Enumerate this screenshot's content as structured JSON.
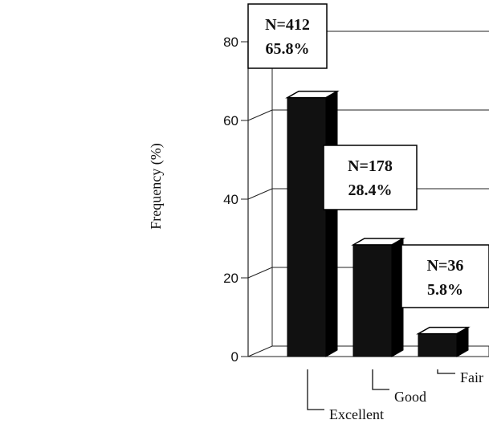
{
  "chart_data": {
    "type": "bar",
    "categories": [
      "Excellent",
      "Good",
      "Fair"
    ],
    "values": [
      65.8,
      28.4,
      5.8
    ],
    "data_labels": [
      {
        "n": "N=412",
        "pct": "65.8%"
      },
      {
        "n": "N=178",
        "pct": "28.4%"
      },
      {
        "n": "N=36",
        "pct": "5.8%"
      }
    ],
    "ylabel": "Frequency (%)",
    "ylim": [
      0,
      80
    ],
    "yticks": [
      "0",
      "20",
      "40",
      "60",
      "80"
    ],
    "grid": true,
    "style": "3d",
    "bar_color": "#111111"
  }
}
